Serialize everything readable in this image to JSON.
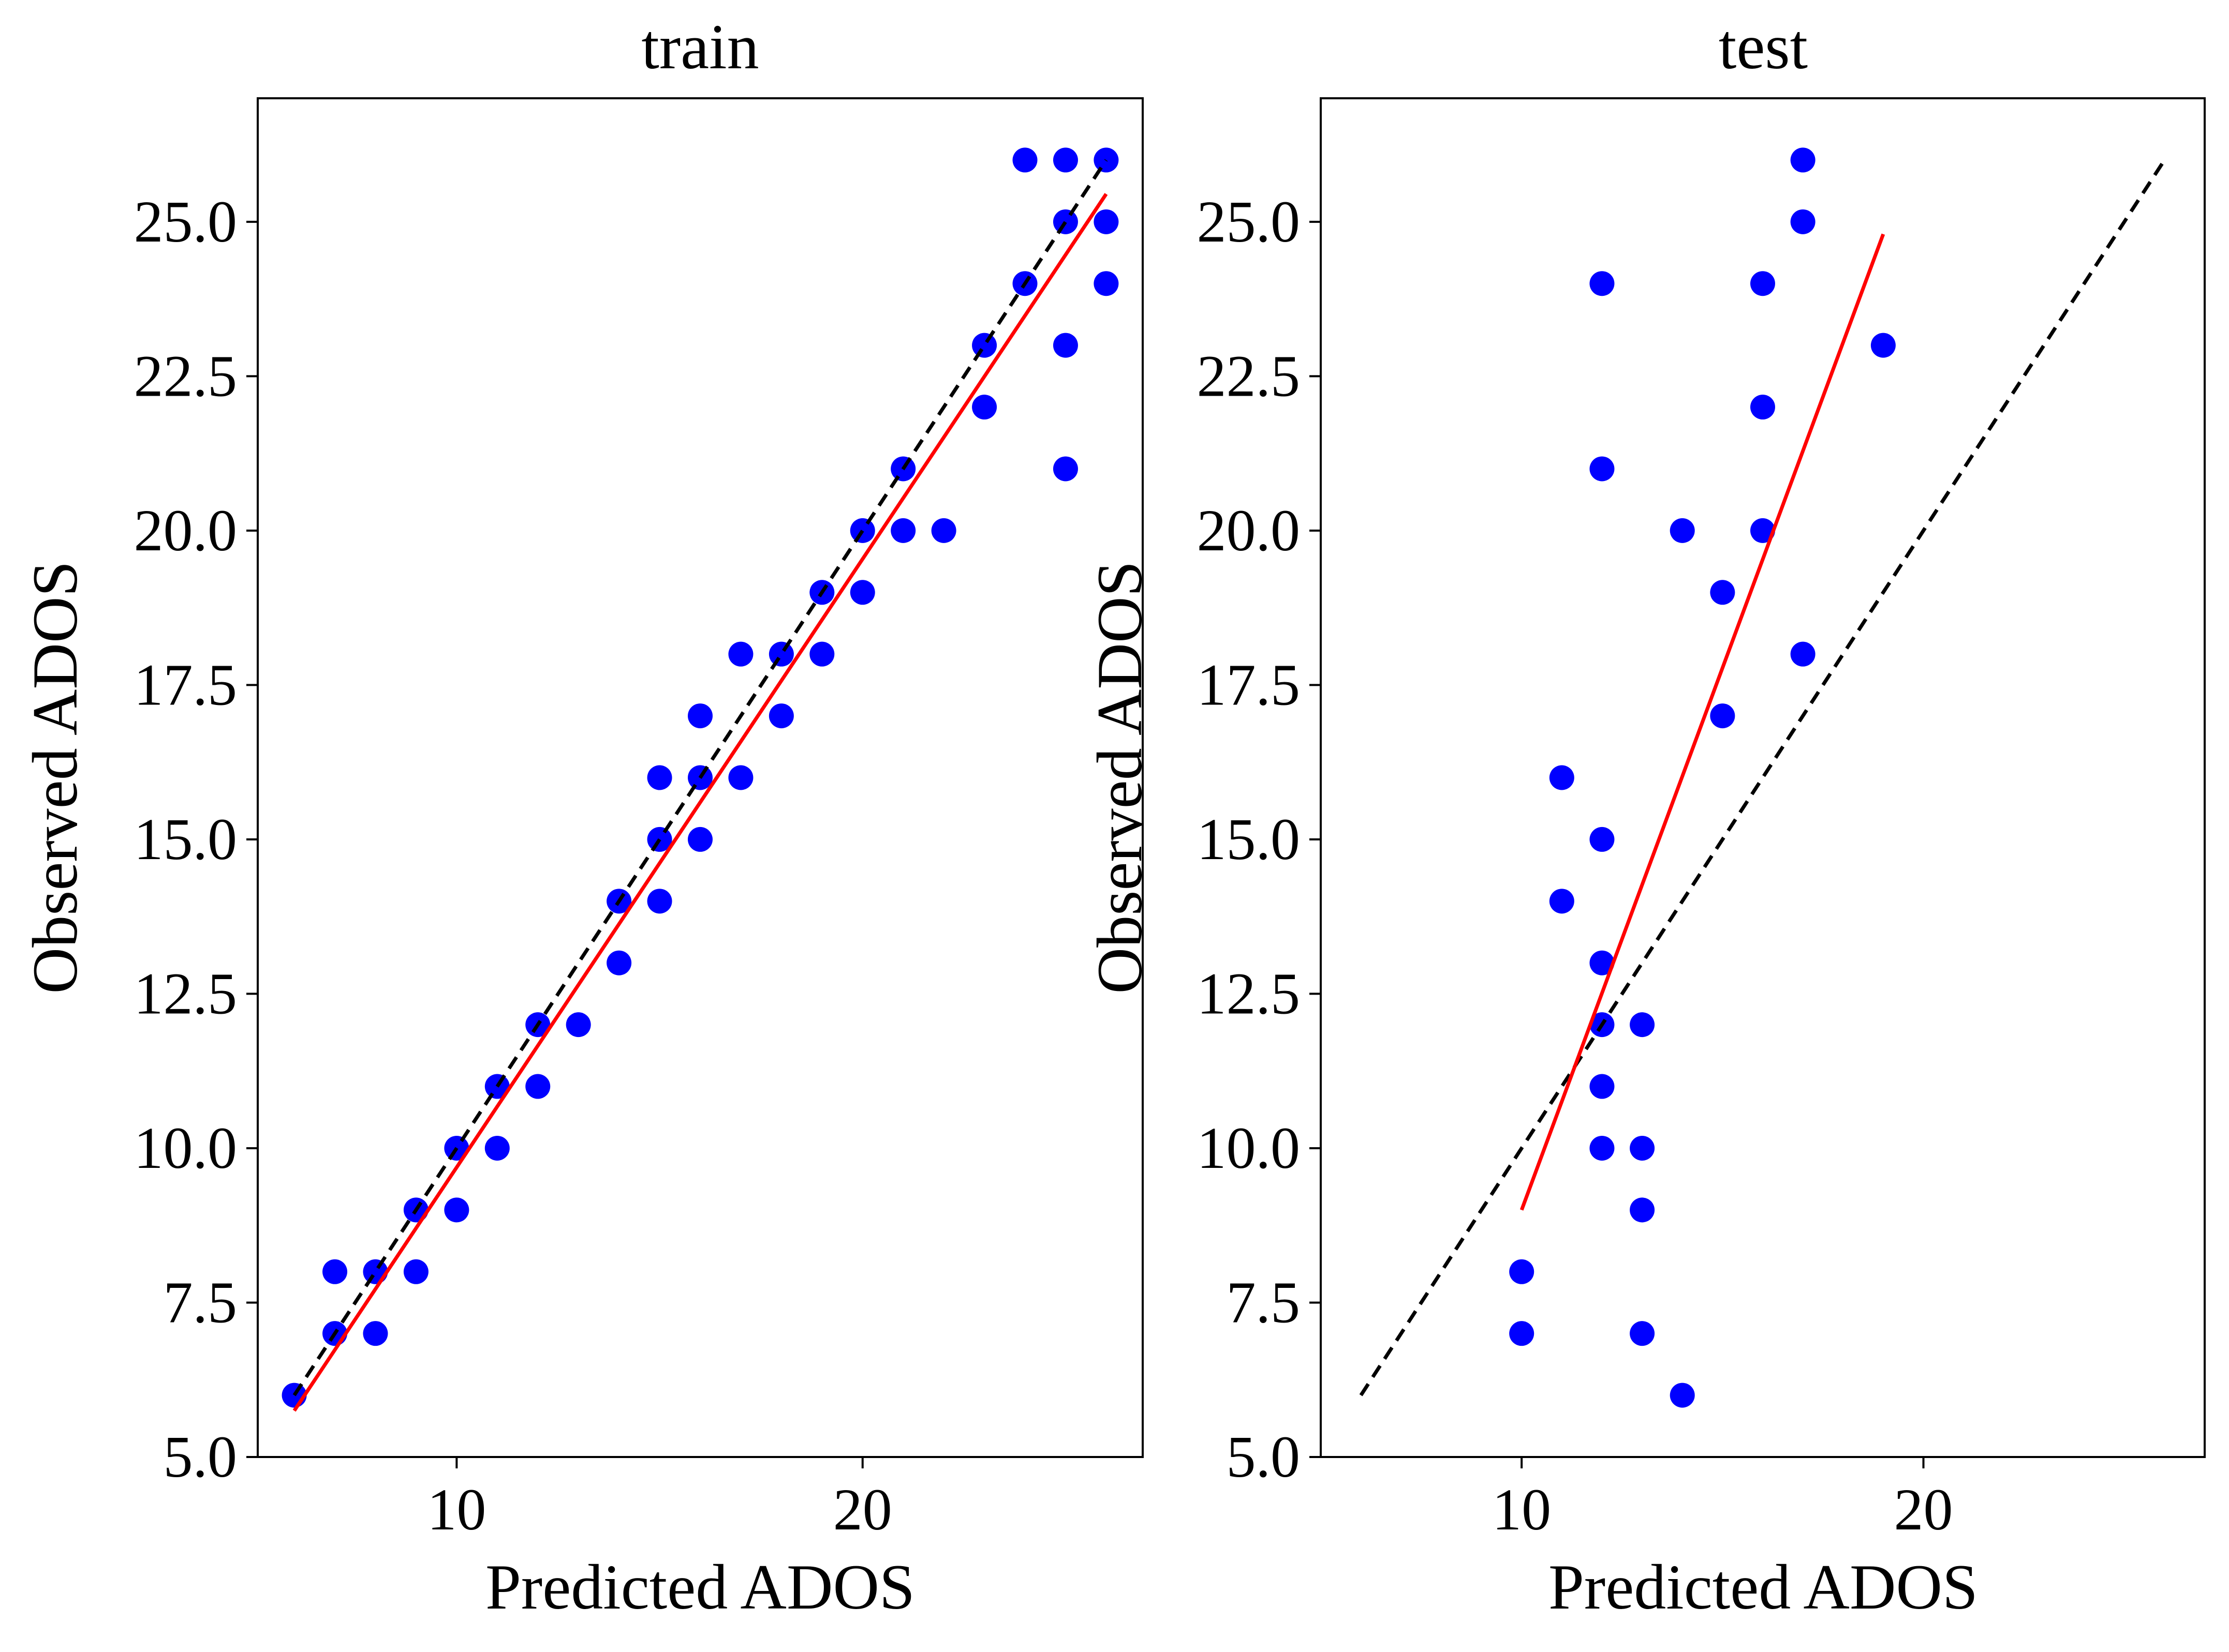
{
  "chart_data": [
    {
      "type": "scatter",
      "title": "train",
      "xlabel": "Predicted ADOS",
      "ylabel": "Observed ADOS",
      "xlim": [
        5.1,
        26.9
      ],
      "ylim": [
        5.0,
        27.0
      ],
      "xticks": [
        10,
        20
      ],
      "xtick_labels": [
        "10",
        "20"
      ],
      "yticks": [
        5.0,
        7.5,
        10.0,
        12.5,
        15.0,
        17.5,
        20.0,
        22.5,
        25.0
      ],
      "ytick_labels": [
        "5.0",
        "7.5",
        "10.0",
        "12.5",
        "15.0",
        "17.5",
        "20.0",
        "22.5",
        "25.0"
      ],
      "grid": false,
      "colors": {
        "points": "#0000ff",
        "fit": "#ff0000",
        "identity": "#000000"
      },
      "points": {
        "x": [
          6,
          7,
          7,
          8,
          8,
          9,
          9,
          10,
          10,
          11,
          11,
          12,
          12,
          13,
          14,
          14,
          15,
          15,
          15,
          16,
          16,
          16,
          17,
          17,
          18,
          18,
          19,
          19,
          20,
          20,
          21,
          21,
          22,
          23,
          23,
          24,
          24,
          25,
          25,
          25,
          25,
          26,
          26,
          26
        ],
        "y": [
          6,
          7,
          8,
          7,
          8,
          8,
          9,
          9,
          10,
          10,
          11,
          11,
          12,
          12,
          13,
          14,
          14,
          15,
          16,
          15,
          16,
          17,
          16,
          18,
          17,
          18,
          18,
          19,
          19,
          20,
          20,
          21,
          20,
          22,
          23,
          24,
          26,
          21,
          23,
          25,
          26,
          24,
          25,
          26
        ]
      },
      "fit_line": {
        "x": [
          6,
          26
        ],
        "y": [
          5.75,
          25.45
        ]
      },
      "identity_line": {
        "x": [
          6,
          26
        ],
        "y": [
          6,
          26
        ]
      }
    },
    {
      "type": "scatter",
      "title": "test",
      "xlabel": "Predicted ADOS",
      "ylabel": "Observed ADOS",
      "xlim": [
        5.0,
        27.0
      ],
      "ylim": [
        5.0,
        27.0
      ],
      "xticks": [
        10,
        20
      ],
      "xtick_labels": [
        "10",
        "20"
      ],
      "yticks": [
        5.0,
        7.5,
        10.0,
        12.5,
        15.0,
        17.5,
        20.0,
        22.5,
        25.0
      ],
      "ytick_labels": [
        "5.0",
        "7.5",
        "10.0",
        "12.5",
        "15.0",
        "17.5",
        "20.0",
        "22.5",
        "25.0"
      ],
      "grid": false,
      "colors": {
        "points": "#0000ff",
        "fit": "#ff0000",
        "identity": "#000000"
      },
      "points": {
        "x": [
          10,
          10,
          11,
          11,
          12,
          12,
          12,
          12,
          12,
          12,
          12,
          13,
          13,
          13,
          13,
          14,
          14,
          15,
          15,
          16,
          16,
          16,
          17,
          17,
          17,
          19
        ],
        "y": [
          7,
          8,
          14,
          16,
          10,
          11,
          12,
          13,
          15,
          21,
          24,
          7,
          9,
          10,
          12,
          6,
          20,
          17,
          19,
          20,
          22,
          24,
          18,
          25,
          26,
          23
        ]
      },
      "fit_line": {
        "x": [
          10,
          19
        ],
        "y": [
          9.0,
          24.8
        ]
      },
      "identity_line": {
        "x": [
          6,
          26
        ],
        "y": [
          6,
          26
        ]
      }
    }
  ]
}
